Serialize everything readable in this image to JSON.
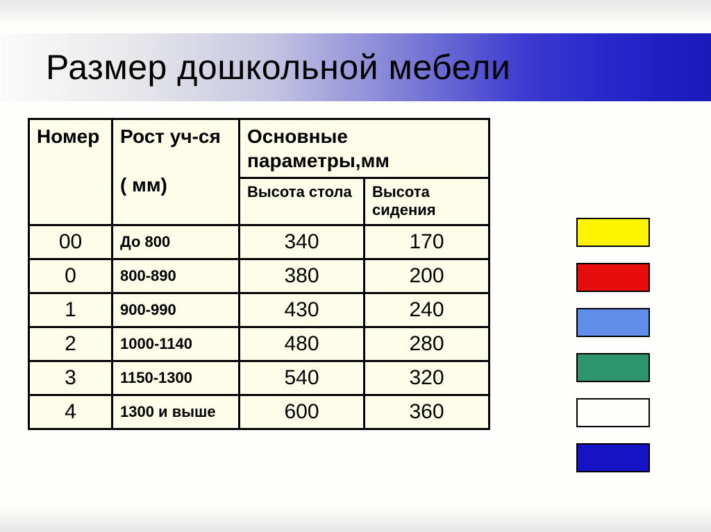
{
  "title": "Размер дошкольной мебели",
  "table": {
    "headers": {
      "number": "Номер",
      "height": "Рост уч-ся",
      "height_unit": "( мм)",
      "params": "Основные параметры,мм",
      "col_table": "Высота стола",
      "col_seat": "Высота сидения"
    },
    "rows": [
      {
        "num": "00",
        "height": "До 800",
        "table_h": "340",
        "seat_h": "170"
      },
      {
        "num": "0",
        "height": "800-890",
        "table_h": "380",
        "seat_h": "200"
      },
      {
        "num": "1",
        "height": "900-990",
        "table_h": "430",
        "seat_h": "240"
      },
      {
        "num": "2",
        "height": "1000-1140",
        "table_h": "480",
        "seat_h": "280"
      },
      {
        "num": "3",
        "height": "1150-1300",
        "table_h": "540",
        "seat_h": "320"
      },
      {
        "num": "4",
        "height": "1300 и выше",
        "table_h": "600",
        "seat_h": "360"
      }
    ]
  },
  "swatches": {
    "colors": [
      "#fef300",
      "#e80d0d",
      "#5f8de8",
      "#2f9470",
      "#fefefc",
      "#1413c5"
    ],
    "border": "#000000"
  },
  "style": {
    "page_bg": "#fefefc",
    "table_bg": "#fefde9",
    "table_border": "#000000",
    "title_font_size": 50,
    "header_font_size": 28,
    "subheader_font_size": 22,
    "body_font_size": 27,
    "num_font_size": 30
  }
}
